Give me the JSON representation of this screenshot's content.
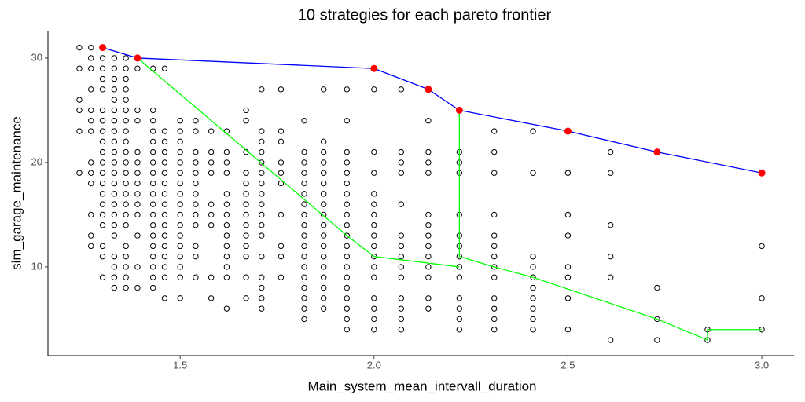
{
  "chart_data": {
    "type": "scatter",
    "title": "10  strategies for each pareto frontier",
    "x_label": "Main_system_mean_intervall_duration",
    "y_label": "sim_garage_maintenance",
    "xlim": [
      1.159,
      3.083
    ],
    "ylim": [
      1.5,
      32.55
    ],
    "xticks": [
      1.5,
      {
        "value": 2,
        "label": "2.0"
      },
      2.5,
      {
        "value": 3,
        "label": "3.0"
      }
    ],
    "yticks": [
      10,
      20,
      30
    ],
    "grid": false,
    "point_color": "#000000",
    "columns": [
      {
        "x": 1.24,
        "y": [
          31,
          29,
          26,
          25,
          23,
          19
        ]
      },
      {
        "x": 1.27,
        "y": [
          31,
          30,
          29,
          27,
          25,
          24,
          23,
          20,
          19,
          18,
          15,
          13,
          12
        ]
      },
      {
        "x": 1.3,
        "y": [
          30,
          29,
          28,
          27,
          25,
          24,
          23,
          22,
          21,
          20,
          19,
          18,
          17,
          16,
          15,
          14,
          12,
          11,
          9
        ]
      },
      {
        "x": 1.33,
        "y": [
          30,
          29,
          28,
          27,
          26,
          25,
          24,
          23,
          22,
          21,
          20,
          19,
          18,
          17,
          16,
          15,
          14,
          13,
          11,
          10,
          9,
          8
        ]
      },
      {
        "x": 1.36,
        "y": [
          30,
          29,
          28,
          27,
          26,
          25,
          24,
          23,
          22,
          21,
          20,
          19,
          18,
          17,
          16,
          15,
          14,
          12,
          11,
          10,
          9,
          8
        ]
      },
      {
        "x": 1.39,
        "y": [
          29,
          25,
          24,
          21,
          20,
          19,
          18,
          17,
          16,
          15,
          13,
          10,
          8
        ]
      },
      {
        "x": 1.43,
        "y": [
          29,
          25,
          24,
          23,
          22,
          21,
          20,
          19,
          18,
          17,
          16,
          15,
          14,
          13,
          12,
          11,
          10,
          9,
          8
        ]
      },
      {
        "x": 1.46,
        "y": [
          29,
          23,
          22,
          21,
          20,
          19,
          18,
          17,
          16,
          15,
          14,
          13,
          12,
          11,
          10,
          9,
          7
        ]
      },
      {
        "x": 1.5,
        "y": [
          24,
          23,
          22,
          21,
          20,
          19,
          18,
          17,
          16,
          15,
          14,
          13,
          12,
          11,
          10,
          9,
          7
        ]
      },
      {
        "x": 1.54,
        "y": [
          24,
          23,
          21,
          20,
          19,
          18,
          17,
          16,
          15,
          14,
          12,
          11,
          9
        ]
      },
      {
        "x": 1.58,
        "y": [
          23,
          21,
          20,
          19,
          16,
          15,
          14,
          9,
          7
        ]
      },
      {
        "x": 1.62,
        "y": [
          23,
          21,
          20,
          19,
          17,
          16,
          15,
          14,
          13,
          12,
          11,
          10,
          9,
          6
        ]
      },
      {
        "x": 1.67,
        "y": [
          25,
          24,
          21,
          19,
          18,
          17,
          16,
          15,
          14,
          13,
          12,
          11,
          9,
          7
        ]
      },
      {
        "x": 1.71,
        "y": [
          27,
          23,
          22,
          21,
          20,
          19,
          18,
          17,
          16,
          15,
          14,
          13,
          11,
          9,
          8,
          7,
          6
        ]
      },
      {
        "x": 1.76,
        "y": [
          27,
          23,
          22,
          20,
          19,
          18,
          15,
          12,
          11,
          9
        ]
      },
      {
        "x": 1.82,
        "y": [
          24,
          21,
          20,
          19,
          18,
          17,
          16,
          15,
          14,
          13,
          12,
          11,
          10,
          9,
          8,
          7,
          6,
          5
        ]
      },
      {
        "x": 1.87,
        "y": [
          27,
          22,
          21,
          20,
          19,
          18,
          17,
          16,
          15,
          14,
          13,
          12,
          11,
          10,
          9,
          8,
          7,
          6
        ]
      },
      {
        "x": 1.93,
        "y": [
          27,
          24,
          21,
          20,
          19,
          18,
          17,
          16,
          15,
          14,
          13,
          12,
          11,
          10,
          9,
          8,
          7,
          6,
          5,
          4
        ]
      },
      {
        "x": 2.0,
        "y": [
          29,
          27,
          21,
          19,
          17,
          16,
          15,
          14,
          13,
          12,
          11,
          10,
          9,
          7,
          6,
          5,
          4
        ]
      },
      {
        "x": 2.07,
        "y": [
          27,
          21,
          20,
          19,
          16,
          13,
          12,
          11,
          10,
          9,
          7,
          6,
          5,
          4
        ]
      },
      {
        "x": 2.14,
        "y": [
          27,
          24,
          21,
          20,
          19,
          15,
          14,
          13,
          12,
          11,
          10,
          9,
          7,
          6
        ]
      },
      {
        "x": 2.22,
        "y": [
          25,
          21,
          20,
          19,
          15,
          13,
          12,
          11,
          10,
          9,
          7,
          6,
          5,
          4
        ]
      },
      {
        "x": 2.31,
        "y": [
          23,
          21,
          19,
          15,
          13,
          12,
          11,
          10,
          9,
          7,
          6,
          5,
          4
        ]
      },
      {
        "x": 2.41,
        "y": [
          23,
          19,
          11,
          10,
          9,
          8,
          7,
          6,
          5,
          4
        ]
      },
      {
        "x": 2.5,
        "y": [
          23,
          19,
          15,
          13,
          10,
          9,
          7,
          4
        ]
      },
      {
        "x": 2.61,
        "y": [
          21,
          19,
          14,
          11,
          9,
          3
        ]
      },
      {
        "x": 2.73,
        "y": [
          21,
          8,
          5,
          3
        ]
      },
      {
        "x": 2.86,
        "y": [
          4,
          3
        ]
      },
      {
        "x": 3.0,
        "y": [
          19,
          12,
          7,
          4
        ]
      }
    ],
    "frontiers": [
      {
        "color": "#0000ff",
        "marker_color": "#ff0000",
        "x": [
          1.3,
          1.39,
          2.0,
          2.14,
          2.22,
          2.5,
          2.73,
          3.0
        ],
        "y": [
          31,
          30,
          29,
          27,
          25,
          23,
          21,
          19
        ]
      },
      {
        "color": "#00ff00",
        "x": [
          1.39,
          1.93,
          2.0,
          2.22
        ],
        "y": [
          30,
          13,
          11,
          10
        ]
      },
      {
        "color": "#00ff00",
        "x": [
          2.22,
          2.22,
          2.31,
          2.41,
          2.73,
          2.86,
          2.86,
          3.0
        ],
        "y": [
          25,
          11,
          10,
          9,
          5,
          3,
          4,
          4
        ]
      }
    ]
  }
}
